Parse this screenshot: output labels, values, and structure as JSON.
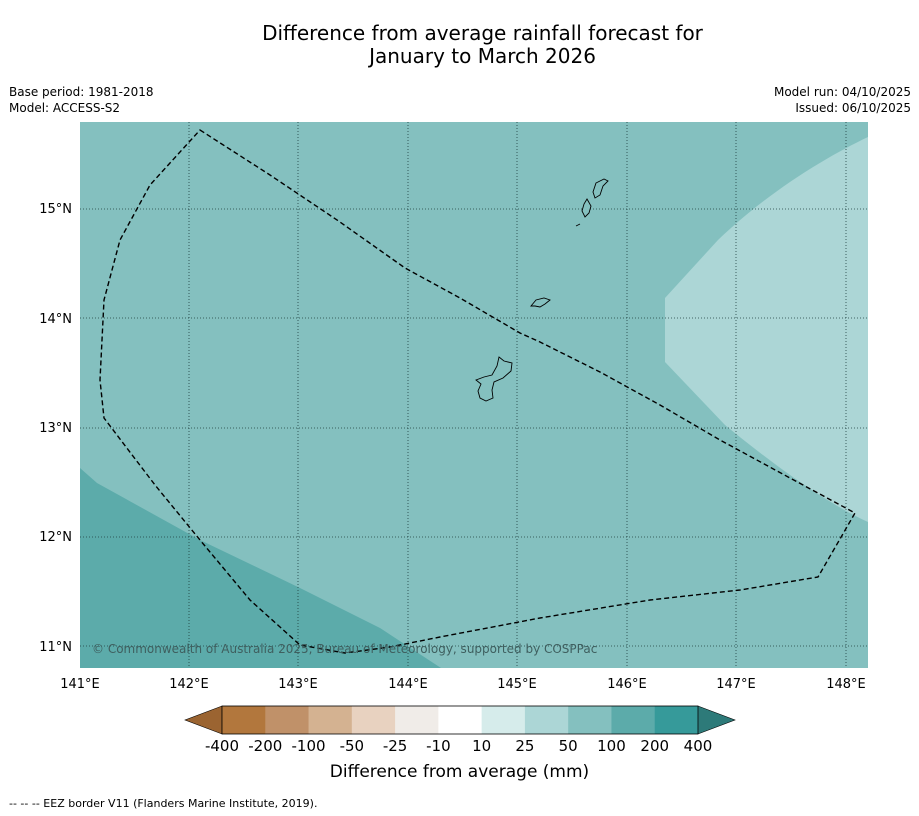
{
  "title_line1": "Difference from average rainfall forecast for",
  "title_line2": "January to March 2026",
  "meta_left": {
    "base_period": "Base period: 1981-2018",
    "model": "Model: ACCESS-S2"
  },
  "meta_right": {
    "model_run": "Model run: 04/10/2025",
    "issued": "Issued: 06/10/2025"
  },
  "map": {
    "lon_ticks": [
      "141°E",
      "142°E",
      "143°E",
      "144°E",
      "145°E",
      "146°E",
      "147°E",
      "148°E"
    ],
    "lat_ticks": [
      "15°N",
      "14°N",
      "13°N",
      "12°N",
      "11°N"
    ],
    "copyright": "© Commonwealth of Australia 2025, Bureau of Meteorology, supported by COSPPac",
    "colors": {
      "band_50_100": "#84c0bf",
      "band_25_50": "#acd6d6",
      "band_100_200": "#5cabaa"
    }
  },
  "colorbar": {
    "ticks": [
      "-400",
      "-200",
      "-100",
      "-50",
      "-25",
      "-10",
      "10",
      "25",
      "50",
      "100",
      "200",
      "400"
    ],
    "colors": [
      "#b2773d",
      "#c09169",
      "#d4b291",
      "#e8d2c0",
      "#f0ece8",
      "#ffffff",
      "#d6eceb",
      "#acd6d6",
      "#84c0bf",
      "#5cabaa",
      "#369a9a"
    ],
    "under_color": "#9b6431",
    "over_color": "#2d7a79",
    "label": "Difference from average (mm)"
  },
  "footnote": "--  --  -- EEZ border V11 (Flanders Marine Institute, 2019)."
}
